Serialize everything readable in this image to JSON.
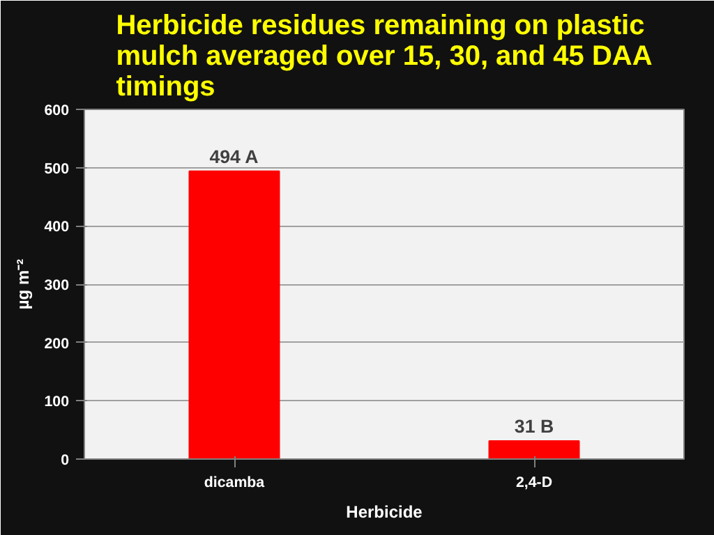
{
  "chart_data": {
    "type": "bar",
    "title": "Herbicide residues remaining on plastic mulch averaged over 15, 30, and 45 DAA timings",
    "categories": [
      "dicamba",
      "2,4-D"
    ],
    "values": [
      494,
      31
    ],
    "value_labels": [
      "494 A",
      "31 B"
    ],
    "color": "#ff0000",
    "xlabel": "Herbicide",
    "ylabel": "µg m⁻²",
    "ylim": [
      0,
      600
    ],
    "yticks": [
      0,
      100,
      200,
      300,
      400,
      500,
      600
    ],
    "grid": "y"
  }
}
